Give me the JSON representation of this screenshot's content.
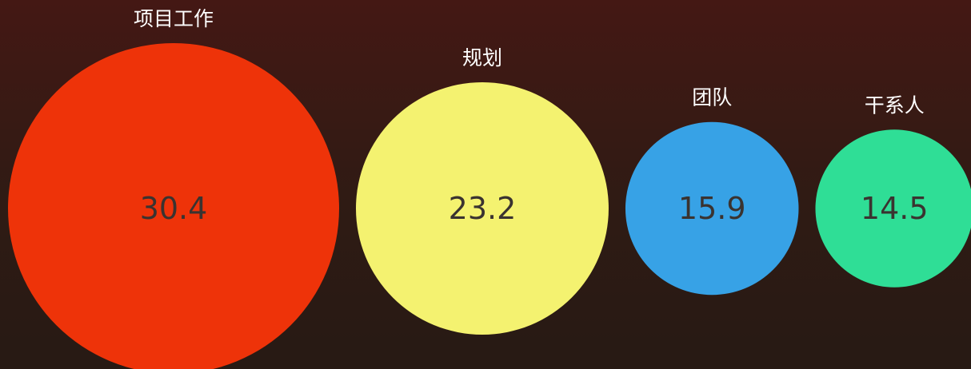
{
  "chart_data": {
    "type": "bubble",
    "title": "",
    "items": [
      {
        "category": "项目工作",
        "value": 30.4,
        "value_label": "30.4",
        "color": "#ee3309"
      },
      {
        "category": "规划",
        "value": 23.2,
        "value_label": "23.2",
        "color": "#f4f270"
      },
      {
        "category": "团队",
        "value": 15.9,
        "value_label": "15.9",
        "color": "#37a2e6"
      },
      {
        "category": "干系人",
        "value": 14.5,
        "value_label": "14.5",
        "color": "#2fde96"
      }
    ],
    "legend": "none",
    "grid": false
  }
}
